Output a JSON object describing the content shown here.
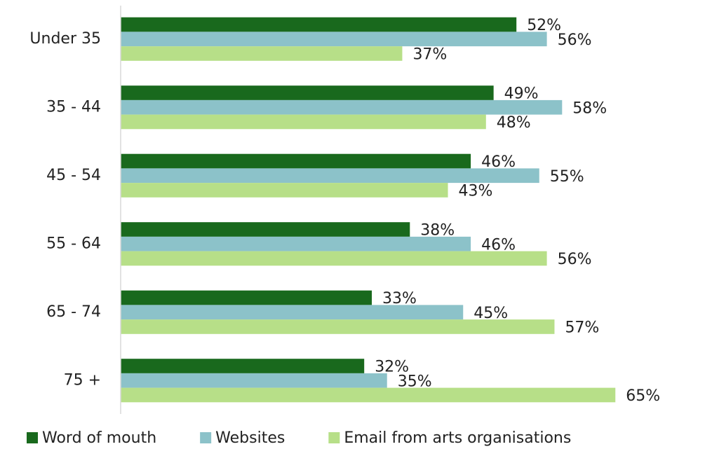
{
  "chart_data": {
    "type": "hbar",
    "categories": [
      "Under 35",
      "35 - 44",
      "45 - 54",
      "55 - 64",
      "65 - 74",
      "75 +"
    ],
    "series": [
      {
        "name": "Word of mouth",
        "color": "#19691d",
        "values": [
          52,
          49,
          46,
          38,
          33,
          32
        ],
        "value_labels": [
          "52%",
          "49%",
          "46%",
          "38%",
          "33%",
          "32%"
        ]
      },
      {
        "name": "Websites",
        "color": "#8cc2c9",
        "values": [
          56,
          58,
          55,
          46,
          45,
          35
        ],
        "value_labels": [
          "56%",
          "58%",
          "55%",
          "46%",
          "45%",
          "35%"
        ]
      },
      {
        "name": "Email from arts organisations",
        "color": "#b7df88",
        "values": [
          37,
          48,
          43,
          56,
          57,
          65
        ],
        "value_labels": [
          "37%",
          "48%",
          "43%",
          "56%",
          "57%",
          "65%"
        ]
      }
    ],
    "xlim": [
      0,
      70
    ],
    "legend": "bottom"
  }
}
